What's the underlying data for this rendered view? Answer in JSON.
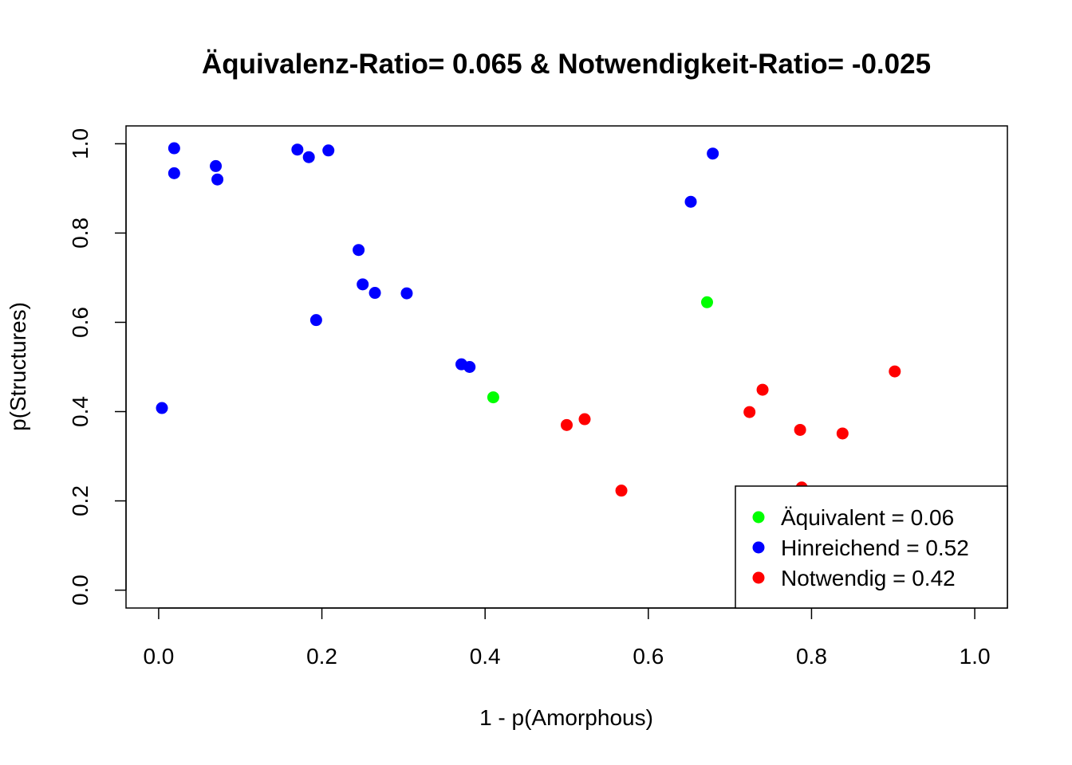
{
  "chart_data": {
    "type": "scatter",
    "title": "Äquivalenz-Ratio= 0.065  & Notwendigkeit-Ratio= -0.025",
    "xlabel": "1 - p(Amorphous)",
    "ylabel": "p(Structures)",
    "xlim": [
      -0.04,
      1.04
    ],
    "ylim": [
      -0.04,
      1.04
    ],
    "x_ticks": [
      0.0,
      0.2,
      0.4,
      0.6,
      0.8,
      1.0
    ],
    "x_tick_labels": [
      "0.0",
      "0.2",
      "0.4",
      "0.6",
      "0.8",
      "1.0"
    ],
    "y_ticks": [
      0.0,
      0.2,
      0.4,
      0.6,
      0.8,
      1.0
    ],
    "y_tick_labels": [
      "0.0",
      "0.2",
      "0.4",
      "0.6",
      "0.8",
      "1.0"
    ],
    "grid": false,
    "legend_position": "bottom-right",
    "series": [
      {
        "name": "Äquivalent = 0.06",
        "color": "#00ff00",
        "x": [
          0.41,
          0.672
        ],
        "y": [
          0.432,
          0.645
        ]
      },
      {
        "name": "Hinreichend = 0.52",
        "color": "#0000ff",
        "x": [
          0.004,
          0.019,
          0.019,
          0.07,
          0.072,
          0.17,
          0.184,
          0.208,
          0.193,
          0.245,
          0.25,
          0.265,
          0.304,
          0.371,
          0.381,
          0.652,
          0.679
        ],
        "y": [
          0.408,
          0.99,
          0.934,
          0.95,
          0.92,
          0.987,
          0.97,
          0.985,
          0.605,
          0.762,
          0.685,
          0.666,
          0.665,
          0.506,
          0.5,
          0.87,
          0.978
        ]
      },
      {
        "name": "Notwendig = 0.42",
        "color": "#ff0000",
        "x": [
          0.5,
          0.522,
          0.567,
          0.724,
          0.74,
          0.786,
          0.788,
          0.838,
          0.902
        ],
        "y": [
          0.37,
          0.383,
          0.223,
          0.399,
          0.449,
          0.359,
          0.23,
          0.351,
          0.49
        ]
      }
    ]
  }
}
